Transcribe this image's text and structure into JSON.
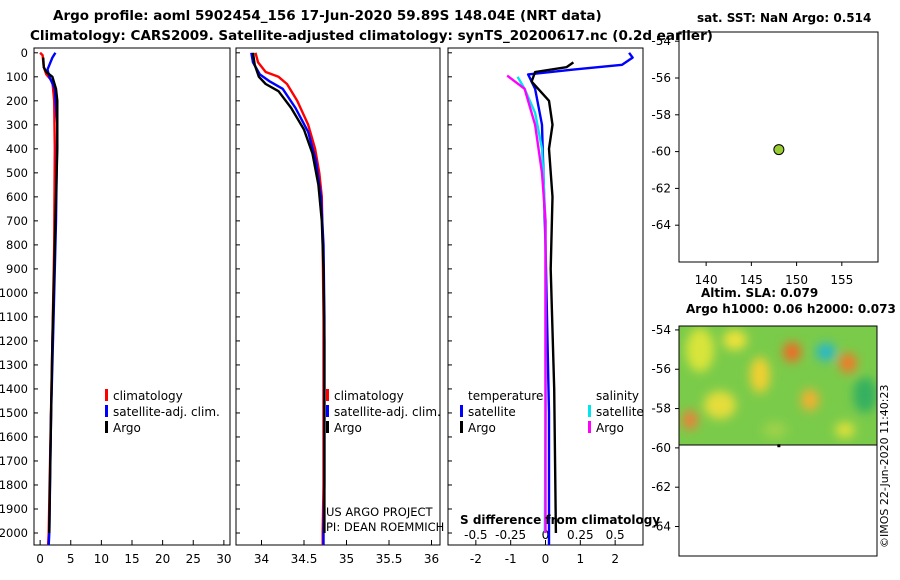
{
  "header": {
    "line1": "Argo profile: aoml 5902454_156 17-Jun-2020 59.89S 148.04E (NRT data)",
    "line2": "Climatology: CARS2009. Satellite-adjusted climatology: synTS_20200617.nc (0.2d earlier)"
  },
  "depth_ticks": [
    "0",
    "100",
    "200",
    "300",
    "400",
    "500",
    "600",
    "700",
    "800",
    "900",
    "1000",
    "1100",
    "1200",
    "1300",
    "1400",
    "1500",
    "1600",
    "1700",
    "1800",
    "1900",
    "2000"
  ],
  "colors": {
    "argo": "#000000",
    "climatology": "#ff0000",
    "satellite": "#0000ff",
    "sat_salinity": "#00e5ee",
    "argo_salinity": "#ff00ff",
    "dot": "#99cc33"
  },
  "chart_data": [
    {
      "type": "line",
      "panel": "temperature",
      "xlim": [
        -1,
        31
      ],
      "ylim": [
        2050,
        -20
      ],
      "xticks": [
        "0",
        "5",
        "10",
        "15",
        "20",
        "25",
        "30"
      ],
      "legend": [
        "climatology",
        "satellite-adj. clim.",
        "Argo"
      ],
      "series": [
        {
          "name": "climatology",
          "color": "#ff0000",
          "points": [
            [
              0,
              0
            ],
            [
              0.4,
              10
            ],
            [
              0.6,
              60
            ],
            [
              1.0,
              90
            ],
            [
              2.0,
              120
            ],
            [
              2.3,
              200
            ],
            [
              2.4,
              400
            ],
            [
              2.3,
              800
            ],
            [
              2.0,
              1200
            ],
            [
              1.7,
              1600
            ],
            [
              1.4,
              2000
            ],
            [
              1.3,
              2050
            ]
          ]
        },
        {
          "name": "satellite-adj. clim.",
          "color": "#0000ff",
          "points": [
            [
              2.5,
              0
            ],
            [
              2.0,
              20
            ],
            [
              1.2,
              70
            ],
            [
              1.5,
              100
            ],
            [
              2.4,
              150
            ],
            [
              2.8,
              300
            ],
            [
              2.6,
              700
            ],
            [
              2.2,
              1100
            ],
            [
              1.8,
              1500
            ],
            [
              1.5,
              2000
            ],
            [
              1.4,
              2050
            ]
          ]
        },
        {
          "name": "Argo",
          "color": "#000000",
          "points": [
            [
              0.5,
              20
            ],
            [
              0.6,
              60
            ],
            [
              1.0,
              80
            ],
            [
              2.0,
              100
            ],
            [
              2.6,
              150
            ],
            [
              2.8,
              200
            ],
            [
              2.8,
              400
            ],
            [
              2.6,
              600
            ],
            [
              2.3,
              900
            ],
            [
              2.0,
              1200
            ],
            [
              1.8,
              1500
            ],
            [
              1.6,
              1800
            ],
            [
              1.5,
              2000
            ]
          ]
        }
      ]
    },
    {
      "type": "line",
      "panel": "salinity",
      "xlim": [
        33.7,
        36.1
      ],
      "ylim": [
        2050,
        -20
      ],
      "xticks": [
        "34",
        "34.5",
        "35",
        "35.5",
        "36"
      ],
      "legend": [
        "climatology",
        "satellite-adj. clim.",
        "Argo"
      ],
      "credits": [
        "US ARGO PROJECT",
        "PI: DEAN ROEMMICH"
      ],
      "series": [
        {
          "name": "climatology",
          "color": "#ff0000",
          "points": [
            [
              33.93,
              0
            ],
            [
              33.96,
              40
            ],
            [
              34.05,
              80
            ],
            [
              34.2,
              100
            ],
            [
              34.3,
              130
            ],
            [
              34.42,
              200
            ],
            [
              34.55,
              300
            ],
            [
              34.63,
              400
            ],
            [
              34.68,
              500
            ],
            [
              34.71,
              600
            ],
            [
              34.72,
              800
            ],
            [
              34.73,
              1100
            ],
            [
              34.73,
              1500
            ],
            [
              34.73,
              1800
            ],
            [
              34.72,
              2000
            ],
            [
              34.72,
              2050
            ]
          ]
        },
        {
          "name": "satellite-adj. clim.",
          "color": "#0000ff",
          "points": [
            [
              33.88,
              0
            ],
            [
              33.9,
              40
            ],
            [
              33.98,
              90
            ],
            [
              34.1,
              120
            ],
            [
              34.25,
              150
            ],
            [
              34.4,
              230
            ],
            [
              34.55,
              330
            ],
            [
              34.64,
              450
            ],
            [
              34.7,
              600
            ],
            [
              34.73,
              800
            ],
            [
              34.74,
              1100
            ],
            [
              34.74,
              1500
            ],
            [
              34.74,
              1800
            ],
            [
              34.73,
              2000
            ],
            [
              34.73,
              2050
            ]
          ]
        },
        {
          "name": "Argo",
          "color": "#000000",
          "points": [
            [
              33.9,
              0
            ],
            [
              33.92,
              50
            ],
            [
              33.97,
              100
            ],
            [
              34.05,
              130
            ],
            [
              34.2,
              160
            ],
            [
              34.35,
              230
            ],
            [
              34.5,
              320
            ],
            [
              34.6,
              420
            ],
            [
              34.67,
              550
            ],
            [
              34.71,
              700
            ],
            [
              34.73,
              900
            ],
            [
              34.74,
              1200
            ],
            [
              34.74,
              1500
            ],
            [
              34.74,
              1800
            ],
            [
              34.74,
              2000
            ]
          ]
        }
      ]
    },
    {
      "type": "line",
      "panel": "difference",
      "xlim": [
        -2.8,
        2.8
      ],
      "ylim": [
        2050,
        -20
      ],
      "xticks": [
        "-2",
        "-1",
        "0",
        "1",
        "2"
      ],
      "xticks_secondary": [
        "-0.5",
        "-0.25",
        "0",
        "0.25",
        "0.5"
      ],
      "xlabel": "S difference from climatology",
      "legend_groups": [
        {
          "title": "temperature",
          "items": [
            "satellite",
            "Argo"
          ]
        },
        {
          "title": "salinity",
          "items": [
            "satellite",
            "Argo"
          ]
        }
      ],
      "series": [
        {
          "name": "temperature satellite",
          "color": "#0000ff",
          "points": [
            [
              2.4,
              0
            ],
            [
              2.5,
              20
            ],
            [
              2.2,
              50
            ],
            [
              0.8,
              70
            ],
            [
              -0.5,
              90
            ],
            [
              -0.3,
              150
            ],
            [
              -0.1,
              300
            ],
            [
              0,
              800
            ],
            [
              0.1,
              1500
            ],
            [
              0.1,
              2000
            ],
            [
              0.1,
              2050
            ]
          ]
        },
        {
          "name": "temperature Argo",
          "color": "#000000",
          "points": [
            [
              0.8,
              40
            ],
            [
              0.6,
              60
            ],
            [
              -0.3,
              80
            ],
            [
              -0.4,
              120
            ],
            [
              0.1,
              200
            ],
            [
              0.2,
              300
            ],
            [
              0.1,
              400
            ],
            [
              0.2,
              600
            ],
            [
              0.15,
              900
            ],
            [
              0.25,
              1400
            ],
            [
              0.3,
              2000
            ]
          ]
        },
        {
          "name": "salinity satellite",
          "color": "#00e5ee",
          "points": [
            [
              -0.8,
              100
            ],
            [
              -0.6,
              150
            ],
            [
              -0.3,
              250
            ],
            [
              -0.1,
              400
            ],
            [
              0,
              700
            ],
            [
              0,
              1100
            ],
            [
              0,
              1500
            ],
            [
              -0.02,
              2000
            ]
          ]
        },
        {
          "name": "salinity Argo",
          "color": "#ff00ff",
          "points": [
            [
              -1.1,
              95
            ],
            [
              -0.6,
              150
            ],
            [
              -0.3,
              300
            ],
            [
              -0.1,
              500
            ],
            [
              0,
              700
            ],
            [
              0,
              1000
            ],
            [
              0,
              1500
            ],
            [
              0,
              2000
            ]
          ]
        }
      ]
    },
    {
      "type": "scatter",
      "panel": "location-map",
      "title": "sat. SST: NaN Argo: 0.514",
      "xlim": [
        137,
        159
      ],
      "ylim": [
        -66,
        -53.5
      ],
      "xticks": [
        "140",
        "145",
        "150",
        "155"
      ],
      "yticks": [
        "-54",
        "-56",
        "-58",
        "-60",
        "-62",
        "-64"
      ],
      "points": [
        {
          "lon": 148.04,
          "lat": -59.89
        }
      ]
    },
    {
      "type": "heatmap",
      "panel": "sla-map",
      "title": "Altim. SLA: 0.079",
      "subtitle": "Argo h1000: 0.06 h2000: 0.073",
      "ylim": [
        -65.5,
        -53.8
      ],
      "yticks": [
        "-54",
        "-56",
        "-58",
        "-60",
        "-62",
        "-64"
      ],
      "side_label": "©IMOS 22-Jun-2020 11:40:23"
    }
  ]
}
